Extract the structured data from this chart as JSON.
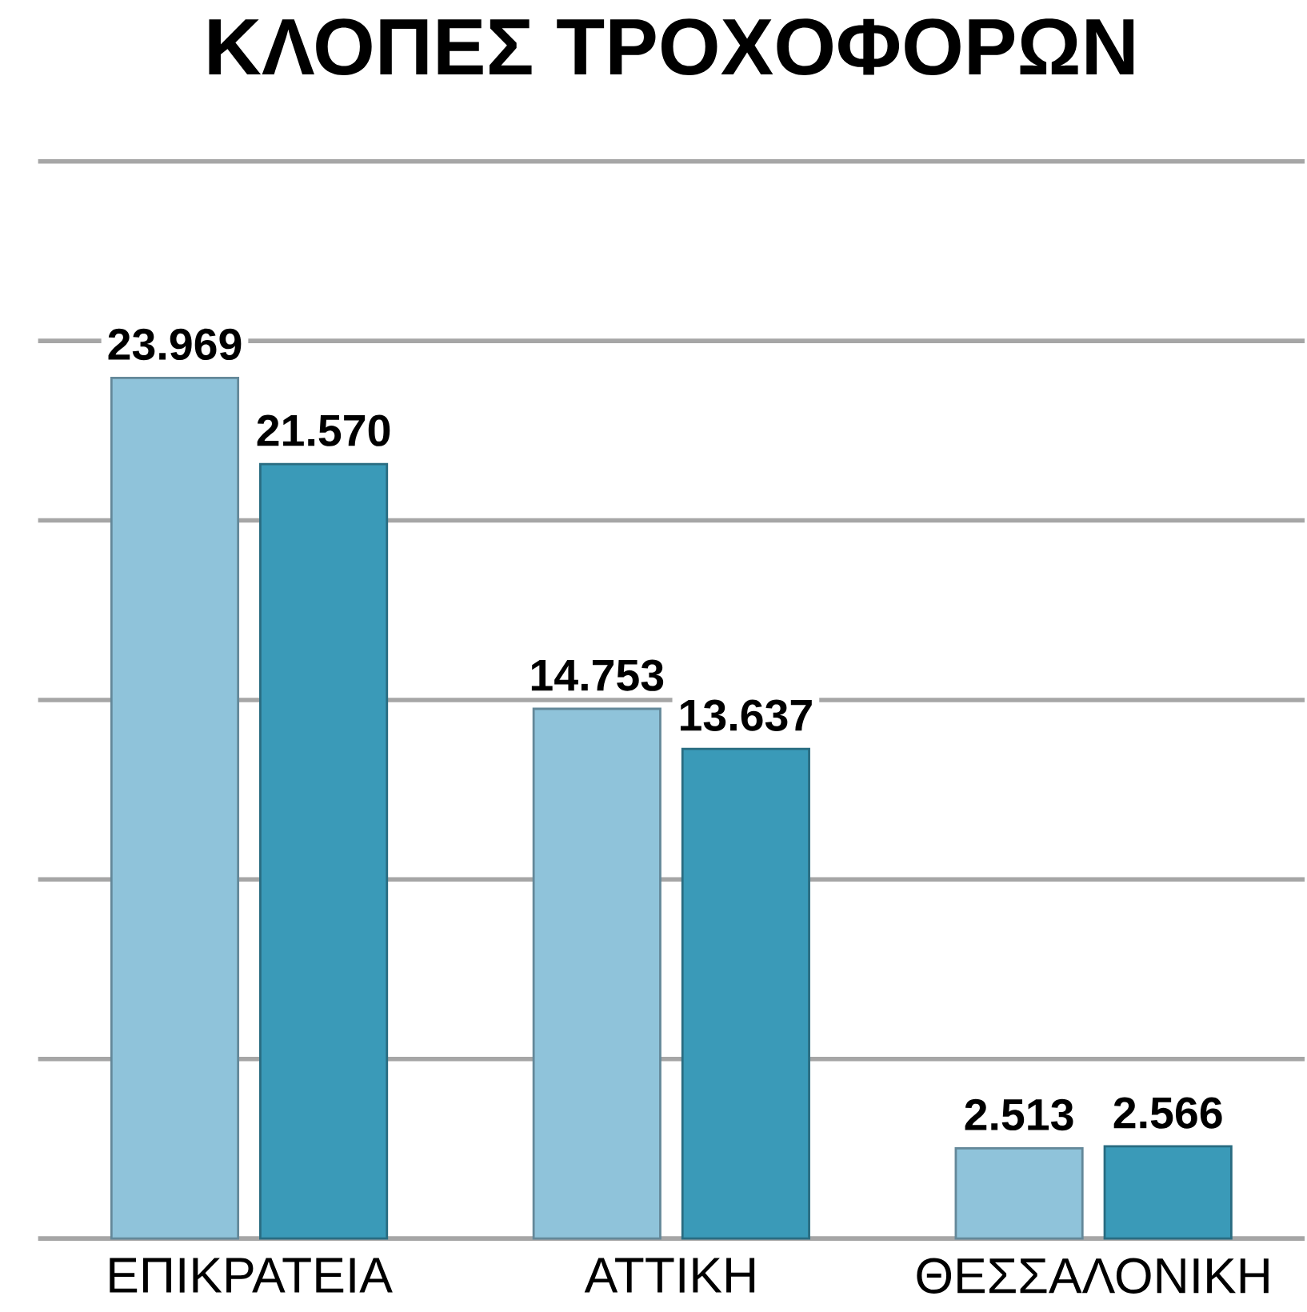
{
  "chart_data": {
    "type": "bar",
    "title": "ΚΛΟΠΕΣ ΤΡΟΧΟΦΟΡΩΝ",
    "categories": [
      "ΕΠΙΚΡΑΤΕΙΑ",
      "ΑΤΤΙΚΗ",
      "ΘΕΣΣΑΛΟΝΙΚΗ"
    ],
    "series": [
      {
        "color": "#8fc3da",
        "values": [
          23969,
          14753,
          2513
        ],
        "value_labels": [
          "23.969",
          "14.753",
          "2.513"
        ]
      },
      {
        "color": "#3a9ab8",
        "values": [
          21570,
          13637,
          2566
        ],
        "value_labels": [
          "21.570",
          "13.637",
          "2.566"
        ]
      }
    ],
    "ylim": [
      0,
      30000
    ],
    "yticks": [
      {
        "value": 0,
        "label": null
      },
      {
        "value": 5000,
        "label": null
      },
      {
        "value": 10000,
        "label": null
      },
      {
        "value": 15000,
        "label": null
      },
      {
        "value": 20000,
        "label": null
      },
      {
        "value": 25000,
        "label": null
      },
      {
        "value": 30000,
        "label": null
      }
    ],
    "grid": "y",
    "tick_labels": "x"
  }
}
